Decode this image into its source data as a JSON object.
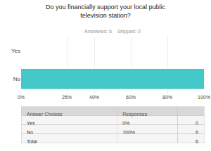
{
  "chart_data": {
    "type": "bar",
    "title": "Do you financially support your local public\ntelevision station?",
    "subtitle": "Answered: 6    Skipped: 0",
    "orientation": "horizontal",
    "categories": [
      "Yes",
      "No"
    ],
    "values": [
      0,
      100
    ],
    "colors": [
      "#e8e8e8",
      "#45c8c8"
    ],
    "xlim": [
      0,
      100
    ],
    "xticks": [
      {
        "value": 0,
        "label": "0%"
      },
      {
        "value": 25,
        "label": "25%"
      },
      {
        "value": 40,
        "label": "40%"
      },
      {
        "value": 60,
        "label": "60%"
      },
      {
        "value": 80,
        "label": "80%"
      },
      {
        "value": 100,
        "label": "100%"
      }
    ],
    "grid": true,
    "table_header": [
      "Answer Choices",
      "Responses"
    ],
    "response_labels": [
      "0%",
      "100%"
    ],
    "counts": [
      0,
      6
    ],
    "total_label": "Total",
    "total": 6
  }
}
